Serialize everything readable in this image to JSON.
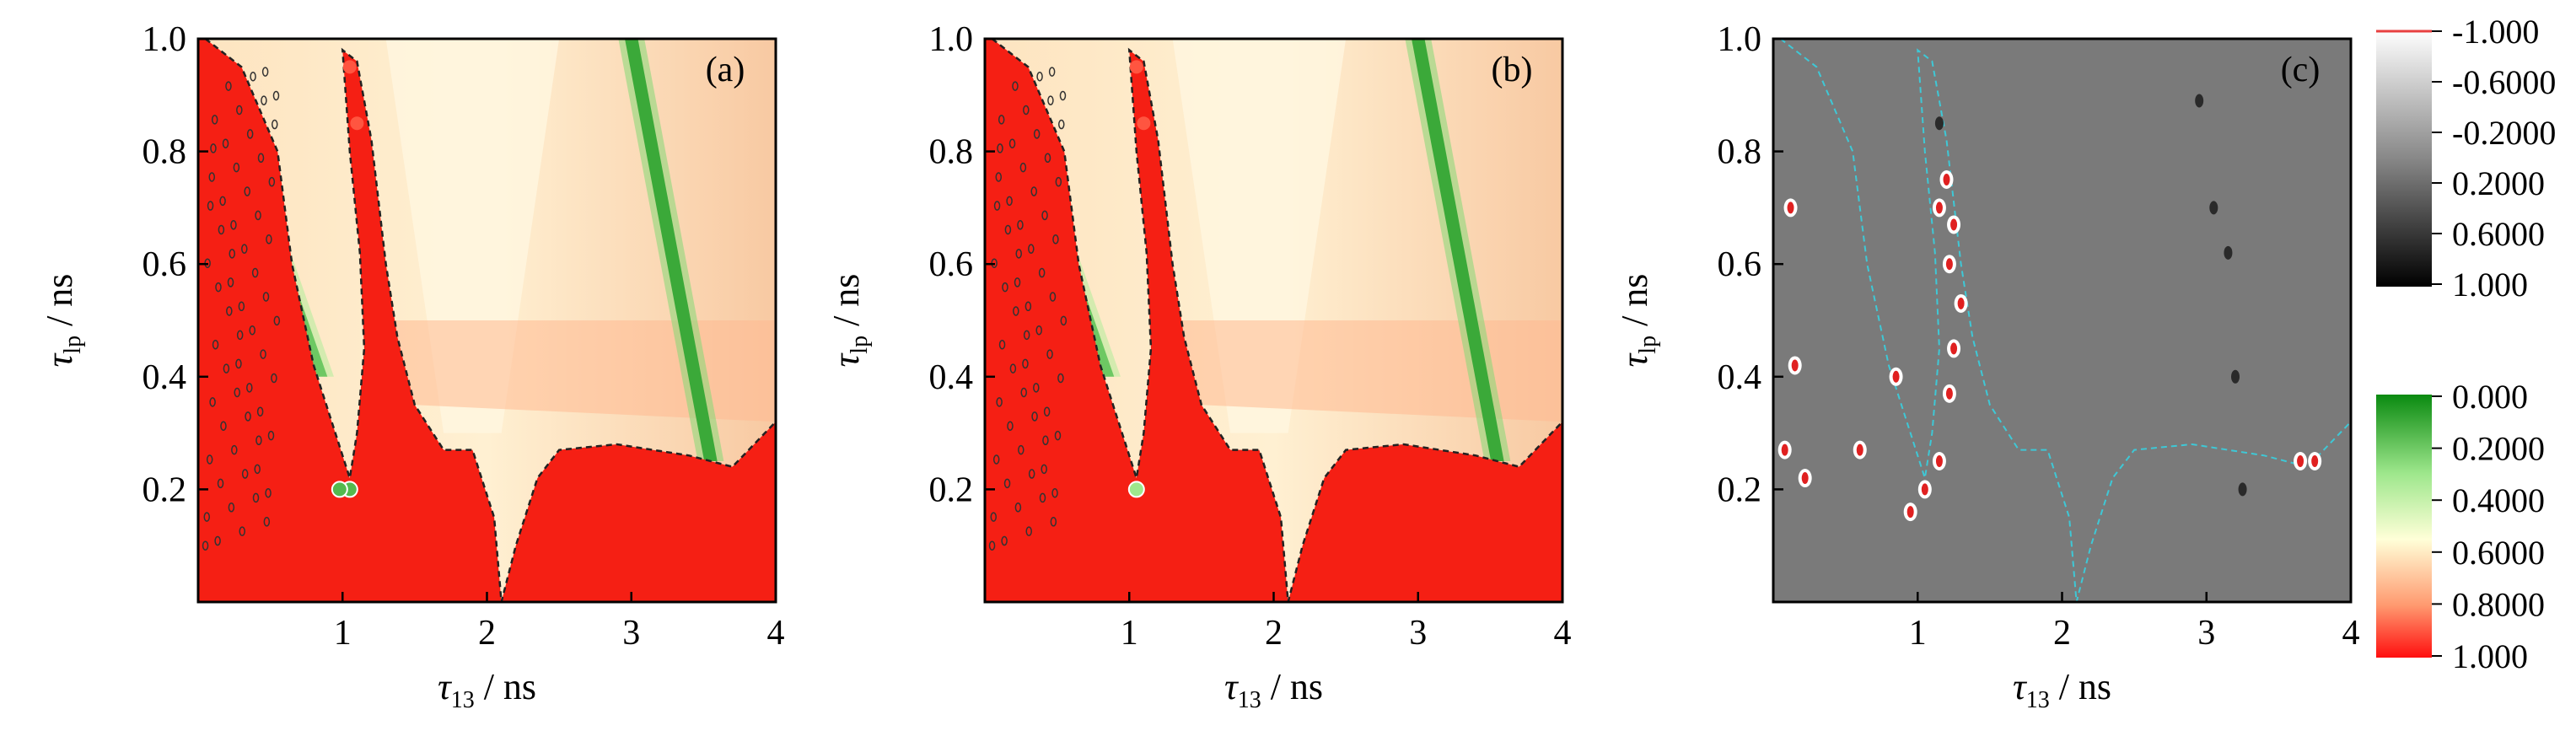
{
  "chart_data": [
    {
      "type": "heatmap",
      "panel_label": "(a)",
      "xlabel": "τ13 / ns",
      "ylabel": "τlp / ns",
      "xlim": [
        0,
        4
      ],
      "ylim": [
        0,
        1.0
      ],
      "x_ticks": [
        "1",
        "2",
        "3",
        "4"
      ],
      "y_ticks": [
        "0.2",
        "0.4",
        "0.6",
        "0.8",
        "1.0"
      ],
      "colorbar": "bottom (green-white-red)",
      "background_value": 0.6,
      "red_boundary": [
        [
          0.05,
          1.0
        ],
        [
          0.3,
          0.95
        ],
        [
          0.55,
          0.8
        ],
        [
          0.65,
          0.6
        ],
        [
          0.8,
          0.42
        ],
        [
          0.95,
          0.3
        ],
        [
          1.05,
          0.22
        ],
        [
          1.1,
          0.3
        ],
        [
          1.15,
          0.45
        ],
        [
          1.12,
          0.62
        ],
        [
          1.05,
          0.8
        ],
        [
          1.0,
          0.98
        ],
        [
          1.1,
          0.96
        ],
        [
          1.2,
          0.82
        ],
        [
          1.3,
          0.6
        ],
        [
          1.38,
          0.47
        ],
        [
          1.5,
          0.35
        ],
        [
          1.7,
          0.27
        ],
        [
          1.9,
          0.27
        ],
        [
          2.05,
          0.15
        ],
        [
          2.1,
          0.0
        ],
        [
          2.2,
          0.1
        ],
        [
          2.35,
          0.22
        ],
        [
          2.5,
          0.27
        ],
        [
          2.9,
          0.28
        ],
        [
          3.4,
          0.26
        ],
        [
          3.7,
          0.24
        ],
        [
          4.0,
          0.32
        ]
      ],
      "green_bands": [
        {
          "x_top": 3.0,
          "x_bottom": 3.55,
          "y_top": 1.0,
          "y_bottom": 0.25,
          "value": 0.1
        },
        {
          "x_top": 0.55,
          "x_bottom": 0.85,
          "y_top": 0.62,
          "y_bottom": 0.4,
          "value": 0.2
        }
      ],
      "green_spots": [
        [
          1.05,
          0.2,
          0.15
        ],
        [
          0.98,
          0.2,
          0.15
        ]
      ],
      "red_spots": [
        [
          1.05,
          0.95,
          0.9
        ],
        [
          1.1,
          0.85,
          0.9
        ]
      ]
    },
    {
      "type": "heatmap",
      "panel_label": "(b)",
      "xlabel": "τ13 / ns",
      "ylabel": "τlp / ns",
      "xlim": [
        0,
        4
      ],
      "ylim": [
        0,
        1.0
      ],
      "x_ticks": [
        "1",
        "2",
        "3",
        "4"
      ],
      "y_ticks": [
        "0.2",
        "0.4",
        "0.6",
        "0.8",
        "1.0"
      ],
      "colorbar": "bottom (green-white-red)",
      "background_value": 0.6,
      "red_boundary": [
        [
          0.05,
          1.0
        ],
        [
          0.3,
          0.95
        ],
        [
          0.55,
          0.8
        ],
        [
          0.65,
          0.6
        ],
        [
          0.8,
          0.42
        ],
        [
          0.95,
          0.3
        ],
        [
          1.05,
          0.22
        ],
        [
          1.1,
          0.3
        ],
        [
          1.15,
          0.45
        ],
        [
          1.12,
          0.62
        ],
        [
          1.05,
          0.8
        ],
        [
          1.0,
          0.98
        ],
        [
          1.1,
          0.96
        ],
        [
          1.2,
          0.82
        ],
        [
          1.3,
          0.6
        ],
        [
          1.38,
          0.47
        ],
        [
          1.5,
          0.35
        ],
        [
          1.7,
          0.27
        ],
        [
          1.9,
          0.27
        ],
        [
          2.05,
          0.15
        ],
        [
          2.1,
          0.0
        ],
        [
          2.2,
          0.1
        ],
        [
          2.35,
          0.22
        ],
        [
          2.5,
          0.27
        ],
        [
          2.9,
          0.28
        ],
        [
          3.4,
          0.26
        ],
        [
          3.7,
          0.24
        ],
        [
          4.0,
          0.32
        ]
      ],
      "green_bands": [
        {
          "x_top": 3.0,
          "x_bottom": 3.55,
          "y_top": 1.0,
          "y_bottom": 0.25,
          "value": 0.1
        },
        {
          "x_top": 0.55,
          "x_bottom": 0.85,
          "y_top": 0.62,
          "y_bottom": 0.4,
          "value": 0.2
        }
      ],
      "green_spots": [
        [
          1.05,
          0.2,
          0.3
        ]
      ],
      "red_spots": [
        [
          1.05,
          0.95,
          0.9
        ],
        [
          1.1,
          0.85,
          0.9
        ]
      ]
    },
    {
      "type": "heatmap",
      "panel_label": "(c)",
      "xlabel": "τ13 / ns",
      "ylabel": "τlp / ns",
      "xlim": [
        0,
        4
      ],
      "ylim": [
        0,
        1.0
      ],
      "x_ticks": [
        "1",
        "2",
        "3",
        "4"
      ],
      "y_ticks": [
        "0.2",
        "0.4",
        "0.6",
        "0.8",
        "1.0"
      ],
      "colorbar": "top (white-black difference)",
      "background_value": 0.0,
      "boundary_line_color": "#3ec8d6",
      "red_spots": [
        [
          1.2,
          0.75
        ],
        [
          1.15,
          0.7
        ],
        [
          1.25,
          0.67
        ],
        [
          1.22,
          0.6
        ],
        [
          1.3,
          0.53
        ],
        [
          1.25,
          0.45
        ],
        [
          1.22,
          0.37
        ],
        [
          0.85,
          0.4
        ],
        [
          0.6,
          0.27
        ],
        [
          0.15,
          0.42
        ],
        [
          0.08,
          0.27
        ],
        [
          0.22,
          0.22
        ],
        [
          0.95,
          0.16
        ],
        [
          1.05,
          0.2
        ],
        [
          1.15,
          0.25
        ],
        [
          3.65,
          0.25
        ],
        [
          3.75,
          0.25
        ],
        [
          0.12,
          0.7
        ]
      ],
      "dark_spots": [
        [
          2.95,
          0.89
        ],
        [
          3.05,
          0.7
        ],
        [
          3.15,
          0.62
        ],
        [
          3.2,
          0.4
        ],
        [
          3.25,
          0.2
        ],
        [
          1.15,
          0.85
        ]
      ]
    }
  ],
  "colorbar_top": {
    "ticks": [
      "-1.000",
      "-0.6000",
      "-0.2000",
      "0.2000",
      "0.6000",
      "1.000"
    ],
    "colors": [
      "#ffffff",
      "#000000"
    ]
  },
  "colorbar_bottom": {
    "ticks": [
      "0.000",
      "0.2000",
      "0.4000",
      "0.6000",
      "0.8000",
      "1.000"
    ],
    "colors": [
      "#1e9e1e",
      "#ffffde",
      "#ff1010"
    ]
  },
  "colors": {
    "red": "#f51f14",
    "green": "#4fd24a",
    "cream": "#fde8c3",
    "peach": "#f7c8a0",
    "diff_gray": "#7a7a7a",
    "cyan": "#3ec8d6"
  }
}
